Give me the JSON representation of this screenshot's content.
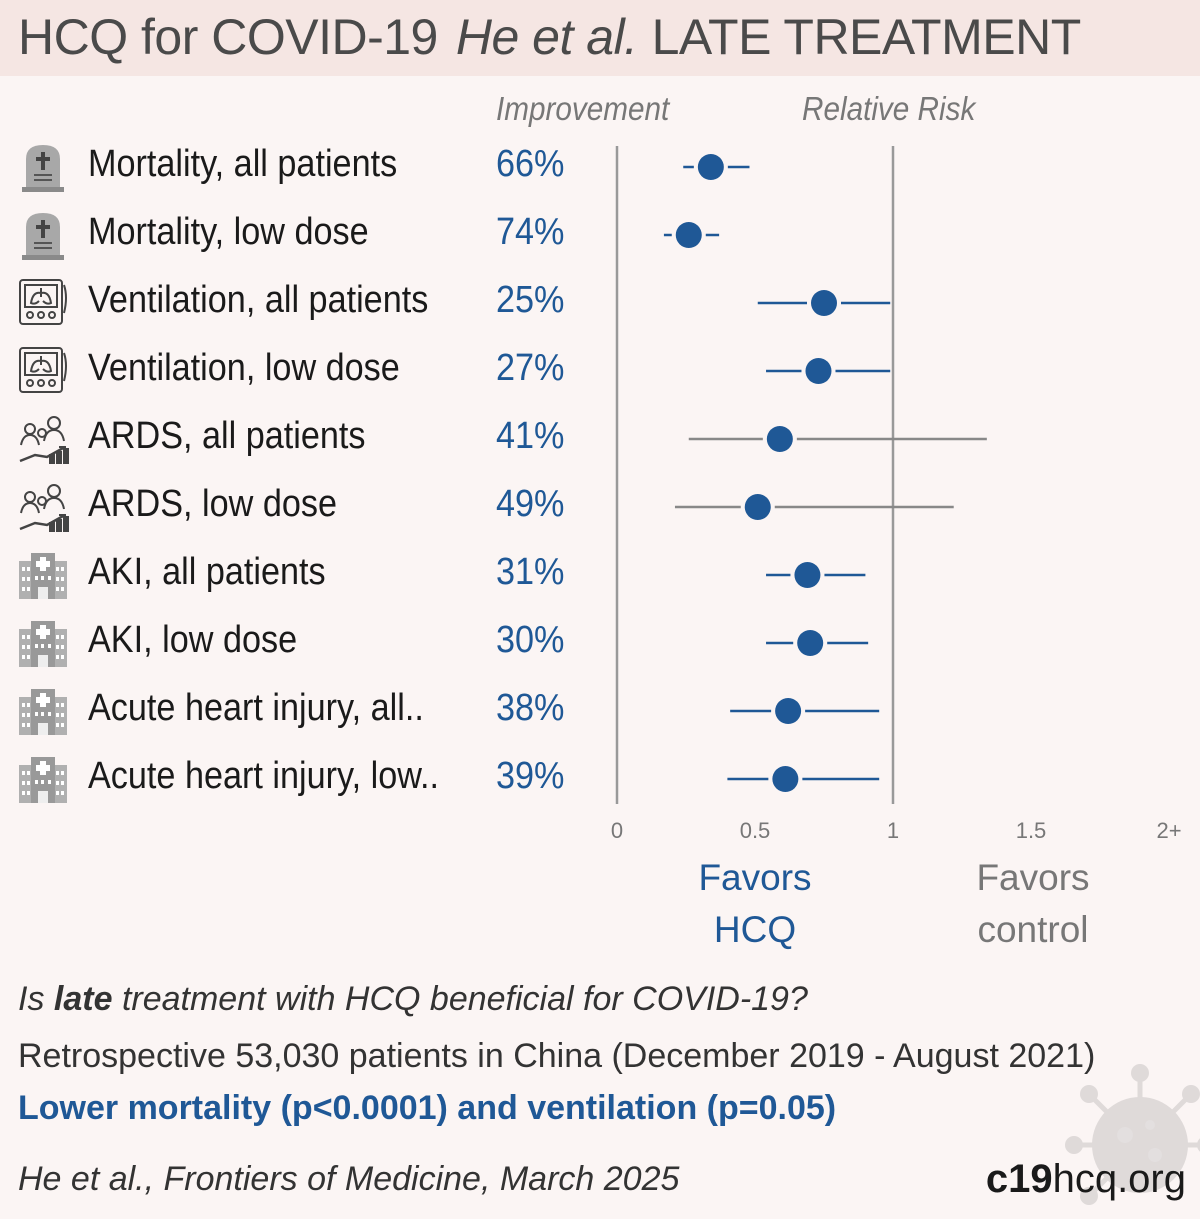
{
  "header": {
    "drug": "HCQ for COVID-19",
    "authors": "He et al.",
    "stage": "LATE TREATMENT"
  },
  "columns": {
    "improvement": "Improvement",
    "relative_risk": "Relative Risk"
  },
  "rows": [
    {
      "label": "Mortality, all patients",
      "pct": "66%",
      "icon": "tombstone-icon"
    },
    {
      "label": "Mortality, low dose",
      "pct": "74%",
      "icon": "tombstone-icon"
    },
    {
      "label": "Ventilation, all patients",
      "pct": "25%",
      "icon": "ventilator-icon"
    },
    {
      "label": "Ventilation, low dose",
      "pct": "27%",
      "icon": "ventilator-icon"
    },
    {
      "label": "ARDS, all patients",
      "pct": "41%",
      "icon": "patients-icon"
    },
    {
      "label": "ARDS, low dose",
      "pct": "49%",
      "icon": "patients-icon"
    },
    {
      "label": "AKI, all patients",
      "pct": "31%",
      "icon": "hospital-icon"
    },
    {
      "label": "AKI, low dose",
      "pct": "30%",
      "icon": "hospital-icon"
    },
    {
      "label": "Acute heart injury, all..",
      "pct": "38%",
      "icon": "hospital-icon"
    },
    {
      "label": "Acute heart injury, low..",
      "pct": "39%",
      "icon": "hospital-icon"
    }
  ],
  "chart_data": {
    "type": "forest",
    "xlabel": "",
    "ylabel": "",
    "x_ticks": [
      "0",
      "0.5",
      "1",
      "1.5",
      "2+"
    ],
    "x_tick_values": [
      0,
      0.5,
      1,
      1.5,
      2
    ],
    "xlim": [
      0,
      2
    ],
    "reference_line": 1,
    "series": [
      {
        "name": "Mortality, all patients",
        "rr": 0.34,
        "ci": [
          0.24,
          0.48
        ]
      },
      {
        "name": "Mortality, low dose",
        "rr": 0.26,
        "ci": [
          0.17,
          0.37
        ]
      },
      {
        "name": "Ventilation, all patients",
        "rr": 0.75,
        "ci": [
          0.51,
          0.99
        ]
      },
      {
        "name": "Ventilation, low dose",
        "rr": 0.73,
        "ci": [
          0.54,
          0.99
        ]
      },
      {
        "name": "ARDS, all patients",
        "rr": 0.59,
        "ci": [
          0.26,
          1.34
        ]
      },
      {
        "name": "ARDS, low dose",
        "rr": 0.51,
        "ci": [
          0.21,
          1.22
        ]
      },
      {
        "name": "AKI, all patients",
        "rr": 0.69,
        "ci": [
          0.54,
          0.9
        ]
      },
      {
        "name": "AKI, low dose",
        "rr": 0.7,
        "ci": [
          0.54,
          0.91
        ]
      },
      {
        "name": "Acute heart injury, all..",
        "rr": 0.62,
        "ci": [
          0.41,
          0.95
        ]
      },
      {
        "name": "Acute heart injury, low..",
        "rr": 0.61,
        "ci": [
          0.4,
          0.95
        ]
      }
    ],
    "significant_color": "#1f5896",
    "nonsignificant_color": "#888888"
  },
  "favors": {
    "left_line1": "Favors",
    "left_line2": "HCQ",
    "right_line1": "Favors",
    "right_line2": "control",
    "left_color": "#1f5896",
    "right_color": "#777777"
  },
  "summary": {
    "question_prefix": "Is ",
    "question_bold": "late",
    "question_suffix": " treatment with HCQ beneficial for COVID-19?",
    "design": "Retrospective 53,030 patients in China (December 2019 - August 2021)",
    "result": "Lower mortality (p<0.0001) and ventilation (p=0.05)",
    "citation": "He et al., Frontiers of Medicine, March 2025"
  },
  "site": {
    "bold": "c19",
    "rest": "hcq.org"
  }
}
